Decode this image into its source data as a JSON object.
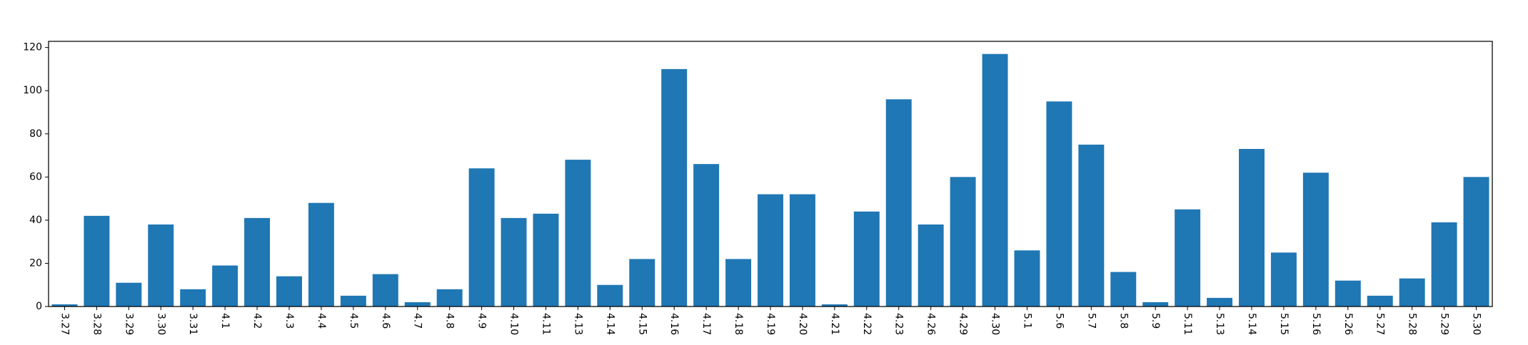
{
  "chart_data": {
    "type": "bar",
    "title": "",
    "xlabel": "",
    "ylabel": "",
    "categories": [
      "3.27",
      "3.28",
      "3.29",
      "3.30",
      "3.31",
      "4.1",
      "4.2",
      "4.3",
      "4.4",
      "4.5",
      "4.6",
      "4.7",
      "4.8",
      "4.9",
      "4.10",
      "4.11",
      "4.13",
      "4.14",
      "4.15",
      "4.16",
      "4.17",
      "4.18",
      "4.19",
      "4.20",
      "4.21",
      "4.22",
      "4.23",
      "4.26",
      "4.29",
      "4.30",
      "5.1",
      "5.6",
      "5.7",
      "5.8",
      "5.9",
      "5.11",
      "5.13",
      "5.14",
      "5.15",
      "5.16",
      "5.26",
      "5.27",
      "5.28",
      "5.29",
      "5.30"
    ],
    "values": [
      1,
      42,
      11,
      38,
      8,
      19,
      41,
      14,
      48,
      5,
      15,
      2,
      8,
      64,
      41,
      43,
      68,
      10,
      22,
      110,
      66,
      22,
      52,
      52,
      1,
      44,
      96,
      38,
      60,
      117,
      26,
      95,
      75,
      16,
      2,
      45,
      4,
      73,
      25,
      62,
      12,
      5,
      13,
      39,
      60
    ],
    "ylim": [
      0,
      122.85
    ],
    "yticks": [
      0,
      20,
      40,
      60,
      80,
      100,
      120
    ],
    "x_tick_rotation": "vertical (-90°)",
    "grid": false,
    "legend": "none",
    "bar_color": "#1f77b4"
  }
}
